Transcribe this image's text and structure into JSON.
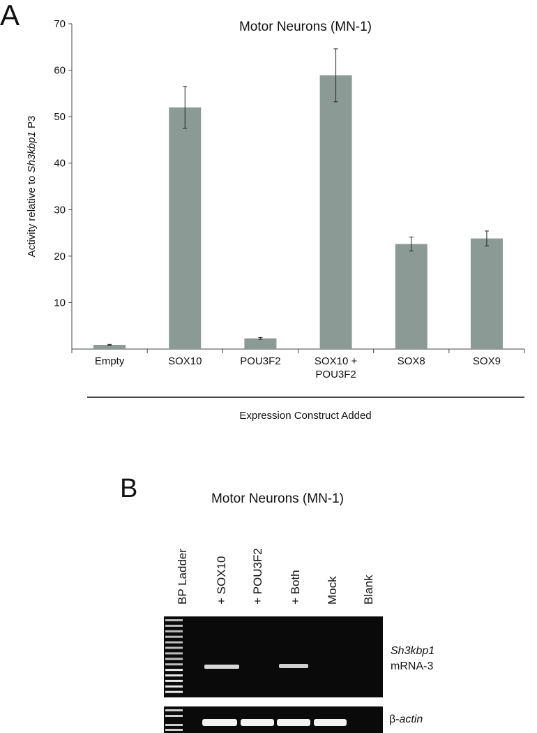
{
  "chart_data": {
    "type": "bar",
    "panel": "A",
    "title": "Motor Neurons (MN-1)",
    "ylabel": {
      "text": "Activity relative to",
      "gene": "Sh3kbp1",
      "suffix": "P3"
    },
    "xlabel": "Expression Construct Added",
    "categories": [
      "Empty",
      "SOX10",
      "POU3F2",
      "SOX10 +\nPOU3F2",
      "SOX8",
      "SOX9"
    ],
    "values": [
      0.9,
      52,
      2.3,
      58.9,
      22.6,
      23.8
    ],
    "errors": [
      0.1,
      4.5,
      0.2,
      5.7,
      1.5,
      1.6
    ],
    "color": "#8c9a96",
    "ylim": [
      0,
      70
    ],
    "yticks": [
      10,
      20,
      30,
      40,
      50,
      60,
      70
    ],
    "grid": false
  },
  "gel": {
    "panel": "B",
    "title": "Motor Neurons (MN-1)",
    "lanes": [
      "BP Ladder",
      "+ SOX10",
      "+ POU3F2",
      "+ Both",
      "Mock",
      "Blank"
    ],
    "target": {
      "gene": "Sh3kbp1",
      "product": "mRNA-3"
    },
    "control": {
      "prefix": "β-",
      "gene": "actin"
    }
  }
}
